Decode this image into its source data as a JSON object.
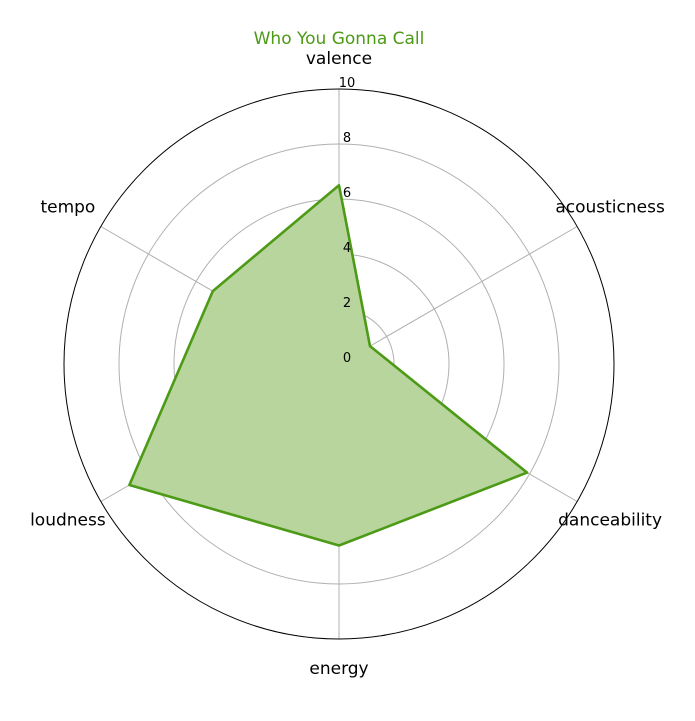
{
  "chart_data": {
    "type": "radar",
    "title": "Who You Gonna Call",
    "axes": [
      "valence",
      "acousticness",
      "danceability",
      "energy",
      "loudness",
      "tempo"
    ],
    "series": [
      {
        "values": [
          6.5,
          1.3,
          7.9,
          6.6,
          8.8,
          5.3
        ]
      }
    ],
    "r_ticks": [
      "0",
      "2",
      "4",
      "6",
      "8",
      "10"
    ],
    "rlim": [
      0,
      10
    ],
    "grid": true,
    "colors": {
      "line": "#4c9a16",
      "fill": "#b8d59e",
      "title": "#4c9a16",
      "grid": "#b0b0b0",
      "outer": "#000000"
    }
  }
}
